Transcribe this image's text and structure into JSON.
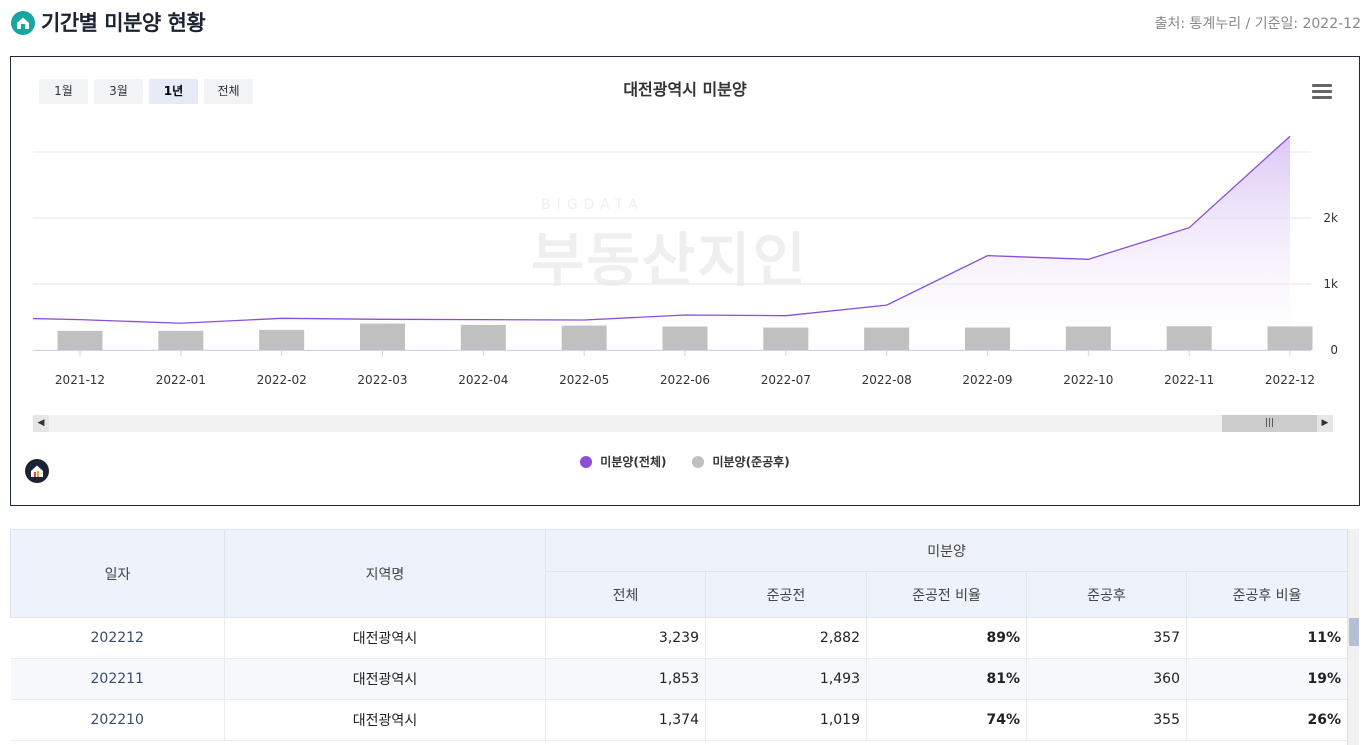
{
  "header": {
    "title": "기간별 미분양 현황",
    "source": "출처: 통계누리 / 기준일: 2022-12"
  },
  "range_buttons": [
    {
      "label": "1월",
      "active": false
    },
    {
      "label": "3월",
      "active": false
    },
    {
      "label": "1년",
      "active": true
    },
    {
      "label": "전체",
      "active": false
    }
  ],
  "colors": {
    "line": "#8a4fd6",
    "area_top": "#d9c4f5",
    "bar": "#c0c0c0",
    "grid": "#e6e6e6"
  },
  "chart_data": {
    "type": "line",
    "title": "대전광역시 미분양",
    "categories": [
      "2021-12",
      "2022-01",
      "2022-02",
      "2022-03",
      "2022-04",
      "2022-05",
      "2022-06",
      "2022-07",
      "2022-08",
      "2022-09",
      "2022-10",
      "2022-11",
      "2022-12"
    ],
    "ylim": [
      0,
      3000
    ],
    "yticks": [
      0,
      1000,
      2000
    ],
    "ytick_labels": [
      "0",
      "1k",
      "2k"
    ],
    "series": [
      {
        "name": "미분양(전체)",
        "type": "area",
        "values": [
          460,
          405,
          480,
          465,
          460,
          455,
          530,
          520,
          680,
          1430,
          1374,
          1853,
          3239
        ]
      },
      {
        "name": "미분양(준공후)",
        "type": "bar",
        "values": [
          290,
          290,
          305,
          400,
          380,
          370,
          355,
          340,
          340,
          340,
          355,
          360,
          357
        ]
      }
    ],
    "legend_position": "bottom"
  },
  "watermark": {
    "top": "BIGDATA",
    "main": "부동산지인"
  },
  "table": {
    "headers": {
      "date": "일자",
      "region": "지역명",
      "group": "미분양",
      "total": "전체",
      "pre": "준공전",
      "pre_ratio": "준공전 비율",
      "post": "준공후",
      "post_ratio": "준공후 비율"
    },
    "rows": [
      {
        "date": "202212",
        "region": "대전광역시",
        "total": "3,239",
        "pre": "2,882",
        "pre_ratio": "89%",
        "post": "357",
        "post_ratio": "11%"
      },
      {
        "date": "202211",
        "region": "대전광역시",
        "total": "1,853",
        "pre": "1,493",
        "pre_ratio": "81%",
        "post": "360",
        "post_ratio": "19%"
      },
      {
        "date": "202210",
        "region": "대전광역시",
        "total": "1,374",
        "pre": "1,019",
        "pre_ratio": "74%",
        "post": "355",
        "post_ratio": "26%"
      }
    ]
  }
}
